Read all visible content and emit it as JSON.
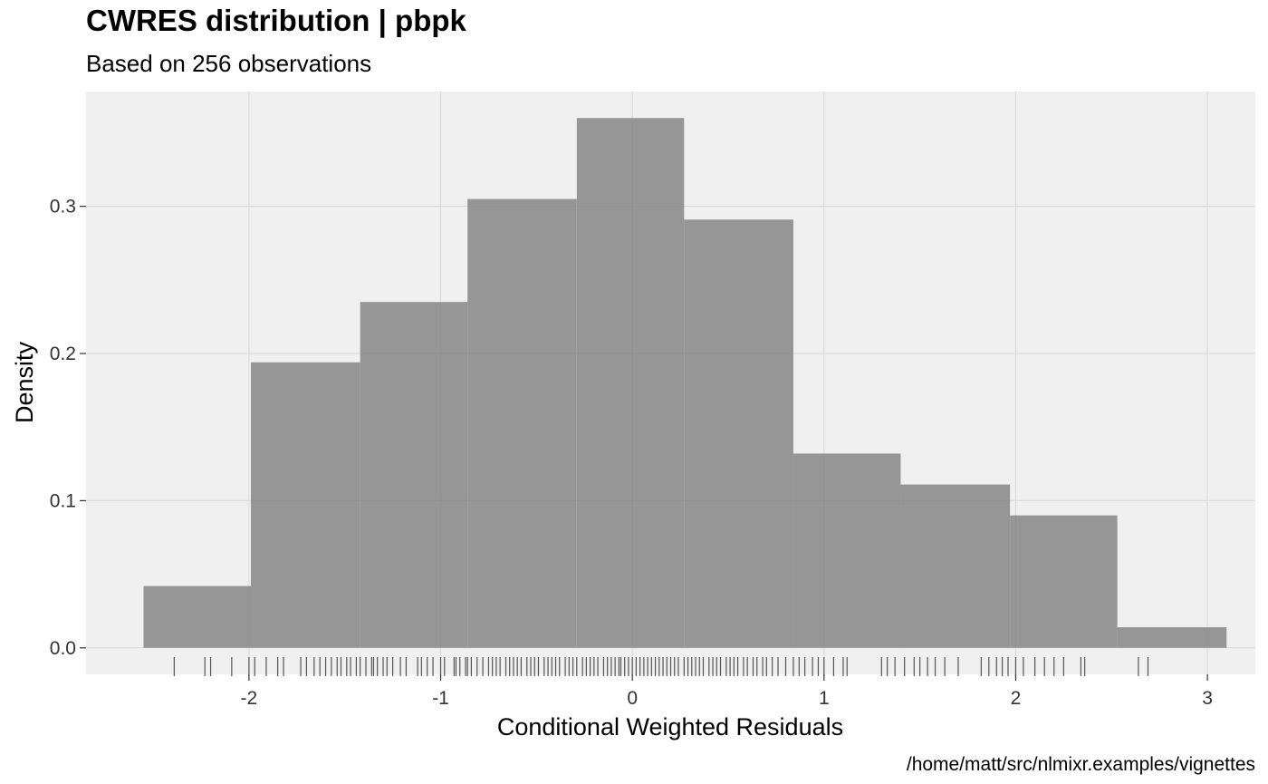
{
  "chart_data": {
    "type": "bar",
    "title": "CWRES distribution | pbpk",
    "subtitle": "Based on 256 observations",
    "xlabel": "Conditional Weighted Residuals",
    "ylabel": "Density",
    "caption": "/home/matt/src/nlmixr.examples/vignettes",
    "xlim": [
      -2.85,
      3.25
    ],
    "ylim": [
      -0.018,
      0.378
    ],
    "x_ticks": [
      -2,
      -1,
      0,
      1,
      2,
      3
    ],
    "x_tick_labels": [
      "-2",
      "-1",
      "0",
      "1",
      "2",
      "3"
    ],
    "y_ticks": [
      0.0,
      0.1,
      0.2,
      0.3
    ],
    "y_tick_labels": [
      "0.0",
      "0.1",
      "0.2",
      "0.3"
    ],
    "bins": [
      {
        "x0": -2.55,
        "x1": -1.99,
        "density": 0.042
      },
      {
        "x0": -1.99,
        "x1": -1.42,
        "density": 0.194
      },
      {
        "x0": -1.42,
        "x1": -0.86,
        "density": 0.235
      },
      {
        "x0": -0.86,
        "x1": -0.29,
        "density": 0.305
      },
      {
        "x0": -0.29,
        "x1": 0.27,
        "density": 0.36
      },
      {
        "x0": 0.27,
        "x1": 0.84,
        "density": 0.291
      },
      {
        "x0": 0.84,
        "x1": 1.4,
        "density": 0.132
      },
      {
        "x0": 1.4,
        "x1": 1.97,
        "density": 0.111
      },
      {
        "x0": 1.97,
        "x1": 2.53,
        "density": 0.09
      },
      {
        "x0": 2.53,
        "x1": 3.1,
        "density": 0.014
      }
    ],
    "rug": [
      -2.39,
      -2.23,
      -2.2,
      -2.09,
      -2.0,
      -1.97,
      -1.91,
      -1.85,
      -1.82,
      -1.73,
      -1.7,
      -1.66,
      -1.63,
      -1.6,
      -1.57,
      -1.54,
      -1.52,
      -1.49,
      -1.47,
      -1.44,
      -1.42,
      -1.39,
      -1.36,
      -1.35,
      -1.33,
      -1.3,
      -1.28,
      -1.25,
      -1.21,
      -1.18,
      -1.12,
      -1.1,
      -1.07,
      -1.04,
      -1.0,
      -0.98,
      -0.93,
      -0.92,
      -0.9,
      -0.87,
      -0.86,
      -0.84,
      -0.81,
      -0.78,
      -0.75,
      -0.73,
      -0.71,
      -0.69,
      -0.66,
      -0.64,
      -0.62,
      -0.6,
      -0.58,
      -0.55,
      -0.53,
      -0.51,
      -0.49,
      -0.46,
      -0.44,
      -0.42,
      -0.4,
      -0.38,
      -0.35,
      -0.33,
      -0.31,
      -0.29,
      -0.26,
      -0.24,
      -0.22,
      -0.2,
      -0.18,
      -0.15,
      -0.13,
      -0.11,
      -0.09,
      -0.07,
      -0.06,
      -0.04,
      -0.02,
      0.0,
      0.02,
      0.04,
      0.06,
      0.08,
      0.1,
      0.12,
      0.14,
      0.16,
      0.18,
      0.2,
      0.22,
      0.24,
      0.27,
      0.29,
      0.31,
      0.33,
      0.35,
      0.37,
      0.4,
      0.42,
      0.44,
      0.46,
      0.49,
      0.51,
      0.53,
      0.55,
      0.58,
      0.6,
      0.63,
      0.65,
      0.68,
      0.7,
      0.73,
      0.76,
      0.8,
      0.84,
      0.87,
      0.9,
      0.94,
      0.97,
      1.0,
      1.05,
      1.1,
      1.12,
      1.3,
      1.33,
      1.37,
      1.42,
      1.47,
      1.5,
      1.54,
      1.58,
      1.63,
      1.7,
      1.82,
      1.86,
      1.9,
      1.93,
      1.96,
      2.0,
      2.04,
      2.1,
      2.15,
      2.2,
      2.25,
      2.34,
      2.36,
      2.64,
      2.69
    ]
  }
}
